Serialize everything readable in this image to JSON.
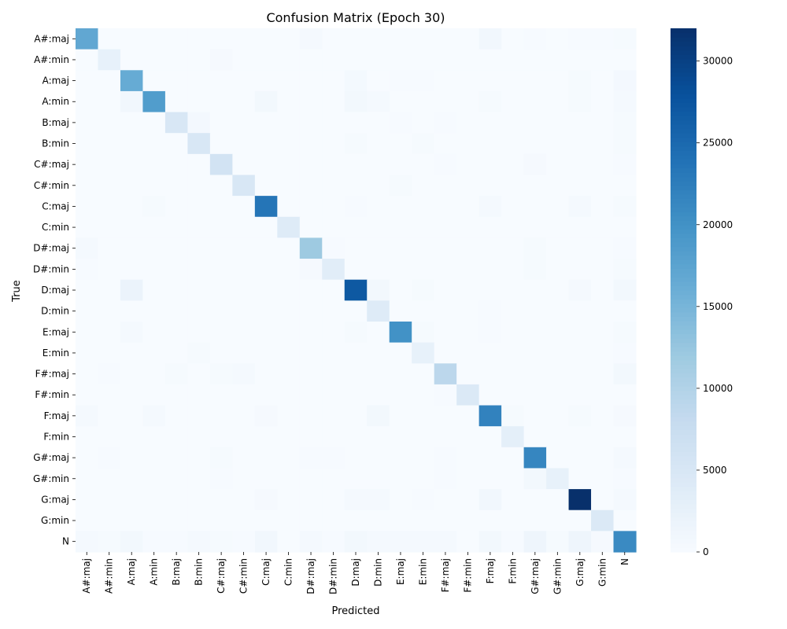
{
  "chart_data": {
    "type": "heatmap",
    "title": "Confusion Matrix (Epoch 30)",
    "xlabel": "Predicted",
    "ylabel": "True",
    "labels": [
      "A#:maj",
      "A#:min",
      "A:maj",
      "A:min",
      "B:maj",
      "B:min",
      "C#:maj",
      "C#:min",
      "C:maj",
      "C:min",
      "D#:maj",
      "D#:min",
      "D:maj",
      "D:min",
      "E:maj",
      "E:min",
      "F#:maj",
      "F#:min",
      "F:maj",
      "F:min",
      "G#:maj",
      "G#:min",
      "G:maj",
      "G:min",
      "N"
    ],
    "matrix": [
      [
        17000,
        0,
        0,
        0,
        0,
        0,
        0,
        0,
        0,
        0,
        500,
        0,
        0,
        0,
        0,
        0,
        0,
        0,
        1000,
        0,
        200,
        0,
        200,
        200,
        300
      ],
      [
        0,
        2500,
        0,
        0,
        0,
        0,
        400,
        0,
        0,
        0,
        0,
        0,
        0,
        0,
        0,
        0,
        0,
        0,
        0,
        0,
        0,
        0,
        0,
        0,
        0
      ],
      [
        0,
        0,
        16500,
        0,
        0,
        0,
        0,
        0,
        0,
        0,
        0,
        0,
        600,
        0,
        200,
        200,
        0,
        0,
        0,
        0,
        0,
        0,
        300,
        0,
        700
      ],
      [
        0,
        0,
        1000,
        18500,
        0,
        0,
        0,
        0,
        800,
        0,
        0,
        0,
        800,
        500,
        0,
        0,
        0,
        0,
        300,
        0,
        0,
        0,
        300,
        0,
        500
      ],
      [
        0,
        0,
        0,
        0,
        5000,
        700,
        0,
        0,
        0,
        0,
        0,
        0,
        0,
        0,
        200,
        0,
        200,
        0,
        0,
        0,
        0,
        0,
        0,
        0,
        300
      ],
      [
        0,
        0,
        0,
        0,
        0,
        5000,
        0,
        0,
        0,
        0,
        0,
        0,
        300,
        0,
        0,
        300,
        0,
        0,
        0,
        0,
        0,
        0,
        0,
        0,
        300
      ],
      [
        0,
        0,
        0,
        0,
        0,
        0,
        6000,
        0,
        0,
        0,
        0,
        0,
        0,
        0,
        0,
        0,
        200,
        0,
        0,
        0,
        400,
        0,
        0,
        0,
        200
      ],
      [
        0,
        0,
        0,
        0,
        0,
        0,
        0,
        5000,
        0,
        0,
        0,
        0,
        0,
        0,
        300,
        0,
        0,
        0,
        0,
        0,
        0,
        0,
        0,
        0,
        0
      ],
      [
        0,
        0,
        0,
        300,
        0,
        0,
        0,
        0,
        23500,
        0,
        0,
        0,
        200,
        0,
        0,
        0,
        0,
        0,
        500,
        0,
        0,
        0,
        500,
        0,
        300
      ],
      [
        0,
        0,
        0,
        0,
        0,
        0,
        0,
        0,
        0,
        4000,
        0,
        0,
        0,
        0,
        0,
        0,
        0,
        0,
        0,
        0,
        0,
        0,
        0,
        0,
        0
      ],
      [
        500,
        0,
        0,
        0,
        0,
        0,
        0,
        0,
        0,
        0,
        12000,
        200,
        0,
        0,
        0,
        0,
        0,
        0,
        0,
        0,
        300,
        0,
        0,
        0,
        200
      ],
      [
        200,
        0,
        0,
        0,
        0,
        0,
        0,
        0,
        0,
        0,
        400,
        3500,
        0,
        0,
        0,
        0,
        0,
        0,
        0,
        0,
        300,
        0,
        0,
        0,
        300
      ],
      [
        0,
        0,
        2000,
        0,
        0,
        0,
        0,
        0,
        0,
        0,
        0,
        0,
        27000,
        800,
        0,
        300,
        0,
        0,
        0,
        0,
        0,
        0,
        500,
        0,
        800
      ],
      [
        0,
        0,
        0,
        0,
        0,
        0,
        0,
        0,
        0,
        0,
        0,
        0,
        0,
        4000,
        0,
        0,
        0,
        0,
        200,
        0,
        0,
        0,
        0,
        0,
        0
      ],
      [
        0,
        0,
        500,
        0,
        0,
        0,
        0,
        0,
        0,
        0,
        0,
        0,
        300,
        0,
        20000,
        300,
        0,
        0,
        200,
        0,
        0,
        0,
        0,
        0,
        300
      ],
      [
        0,
        0,
        0,
        0,
        0,
        300,
        0,
        0,
        0,
        0,
        0,
        0,
        0,
        0,
        0,
        2500,
        0,
        0,
        0,
        0,
        0,
        0,
        0,
        0,
        200
      ],
      [
        0,
        200,
        0,
        0,
        300,
        0,
        300,
        500,
        0,
        0,
        0,
        0,
        0,
        0,
        0,
        0,
        9000,
        0,
        0,
        0,
        0,
        0,
        0,
        0,
        800
      ],
      [
        0,
        0,
        0,
        0,
        0,
        0,
        0,
        0,
        0,
        0,
        0,
        0,
        0,
        0,
        0,
        0,
        200,
        4500,
        0,
        0,
        0,
        0,
        0,
        0,
        0
      ],
      [
        500,
        0,
        0,
        500,
        0,
        0,
        0,
        0,
        400,
        0,
        0,
        0,
        0,
        800,
        0,
        0,
        0,
        0,
        22000,
        300,
        0,
        0,
        300,
        0,
        400
      ],
      [
        0,
        0,
        0,
        0,
        0,
        0,
        0,
        0,
        0,
        0,
        0,
        0,
        0,
        0,
        0,
        0,
        0,
        0,
        0,
        3000,
        0,
        0,
        0,
        0,
        0
      ],
      [
        0,
        200,
        0,
        0,
        0,
        0,
        300,
        0,
        0,
        0,
        200,
        200,
        0,
        0,
        0,
        0,
        200,
        0,
        0,
        0,
        21500,
        0,
        0,
        0,
        500
      ],
      [
        0,
        0,
        0,
        0,
        0,
        0,
        200,
        0,
        0,
        0,
        0,
        0,
        0,
        0,
        0,
        0,
        200,
        0,
        0,
        0,
        800,
        2500,
        0,
        0,
        200
      ],
      [
        0,
        0,
        0,
        0,
        0,
        0,
        0,
        0,
        400,
        0,
        0,
        0,
        500,
        500,
        0,
        200,
        0,
        0,
        1000,
        0,
        0,
        0,
        32000,
        0,
        500
      ],
      [
        0,
        0,
        0,
        0,
        0,
        0,
        0,
        0,
        0,
        0,
        0,
        0,
        0,
        0,
        0,
        0,
        0,
        0,
        0,
        0,
        0,
        0,
        0,
        4500,
        0
      ],
      [
        500,
        300,
        800,
        200,
        200,
        500,
        300,
        200,
        1000,
        0,
        500,
        200,
        800,
        500,
        500,
        500,
        500,
        0,
        800,
        200,
        1500,
        300,
        1500,
        400,
        21000
      ]
    ],
    "colorbar": {
      "min": 0,
      "max": 32000,
      "ticks": [
        0,
        5000,
        10000,
        15000,
        20000,
        25000,
        30000
      ]
    },
    "colormap": "Blues"
  }
}
